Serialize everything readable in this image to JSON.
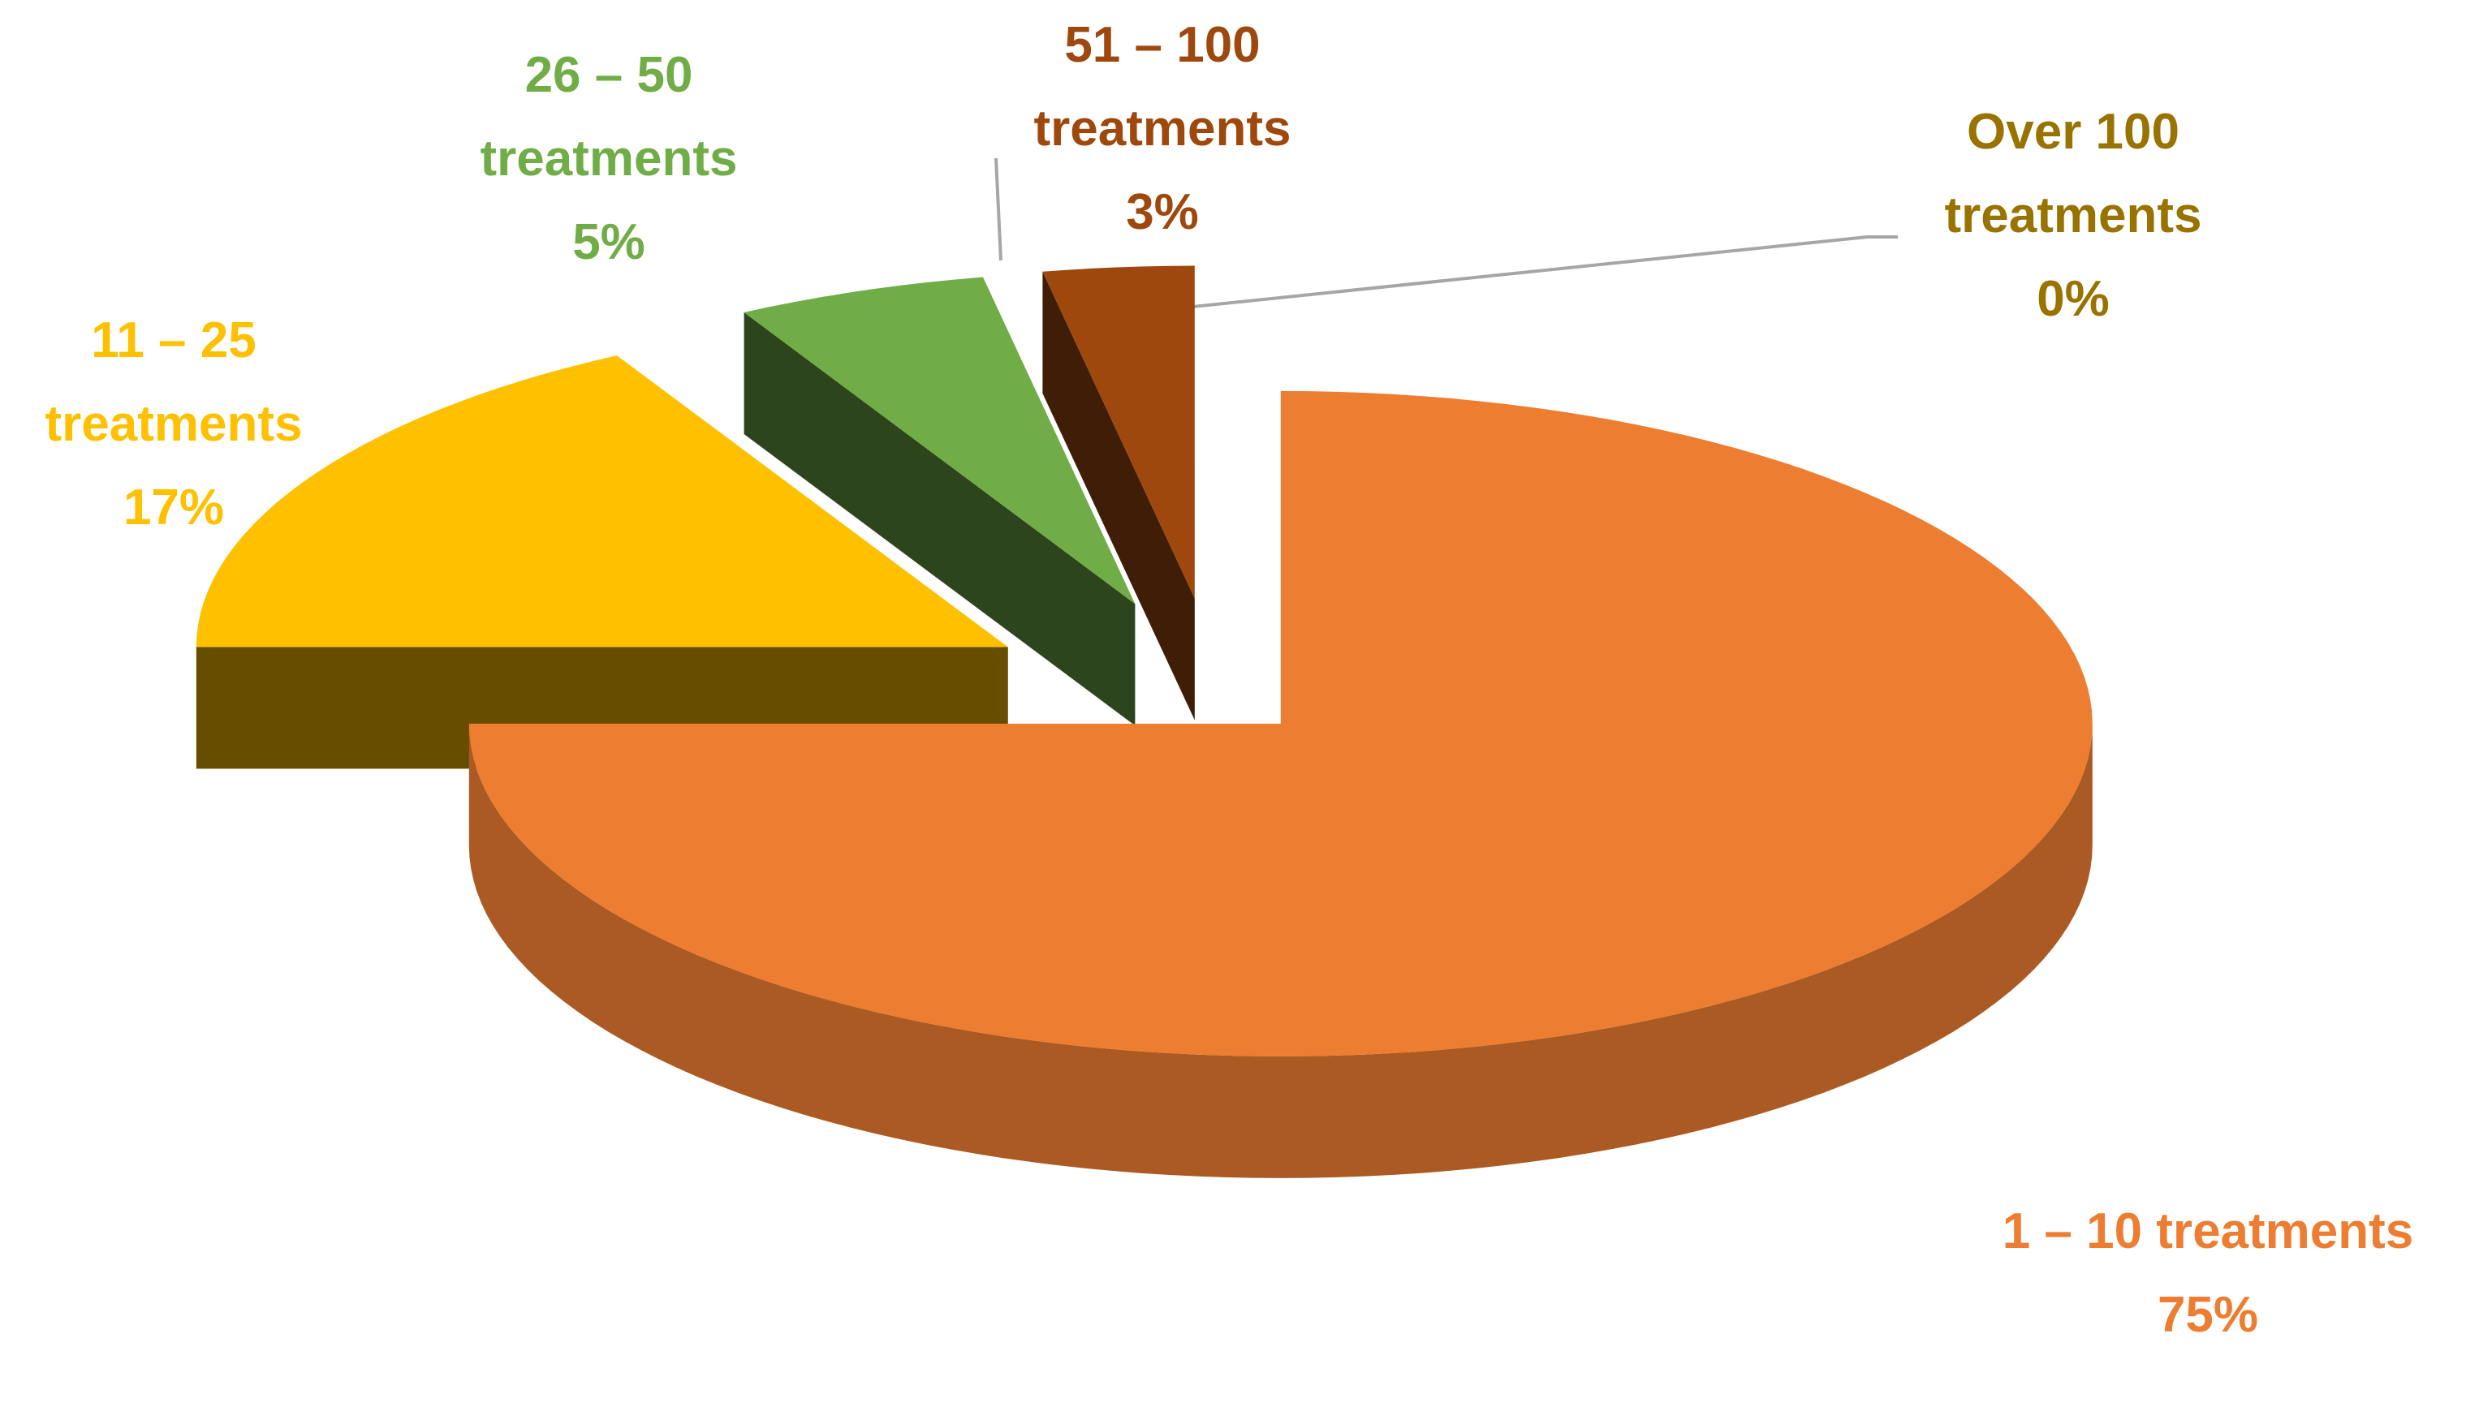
{
  "chart_data": {
    "type": "pie",
    "categories": [
      "1 – 10 treatments",
      "11 – 25 treatments",
      "26 – 50 treatments",
      "51 – 100 treatments",
      "Over 100 treatments"
    ],
    "values": [
      75,
      17,
      5,
      3,
      0
    ],
    "value_labels": [
      "75%",
      "17%",
      "5%",
      "3%",
      "0%"
    ],
    "colors": [
      "#ED7D31",
      "#FFC000",
      "#70AD47",
      "#9E480E",
      "#997300"
    ]
  }
}
